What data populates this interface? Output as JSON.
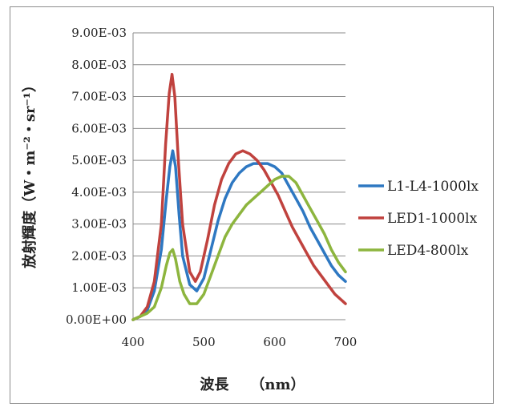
{
  "chart_data": {
    "type": "line",
    "title": "",
    "xlabel": "波長　　（nm）",
    "ylabel": "放射輝度（W・m⁻²・sr⁻¹）",
    "xlim": [
      400,
      700
    ],
    "ylim": [
      0,
      0.009
    ],
    "x_ticks": [
      "400",
      "500",
      "600",
      "700"
    ],
    "y_ticks": [
      "0.00E+00",
      "1.00E-03",
      "2.00E-03",
      "3.00E-03",
      "4.00E-03",
      "5.00E-03",
      "6.00E-03",
      "7.00E-03",
      "8.00E-03",
      "9.00E-03"
    ],
    "grid": "horizontal",
    "legend_position": "right",
    "series": [
      {
        "name": "L1-L4-1000lx",
        "color": "#2e78c2",
        "points": [
          [
            400,
            0
          ],
          [
            410,
            0.0001
          ],
          [
            420,
            0.0003
          ],
          [
            430,
            0.0009
          ],
          [
            440,
            0.0022
          ],
          [
            447,
            0.0038
          ],
          [
            452,
            0.0048
          ],
          [
            456,
            0.0053
          ],
          [
            460,
            0.0048
          ],
          [
            465,
            0.0033
          ],
          [
            470,
            0.002
          ],
          [
            480,
            0.0011
          ],
          [
            490,
            0.0009
          ],
          [
            500,
            0.0013
          ],
          [
            510,
            0.0022
          ],
          [
            520,
            0.0031
          ],
          [
            530,
            0.0038
          ],
          [
            540,
            0.0043
          ],
          [
            550,
            0.0046
          ],
          [
            560,
            0.0048
          ],
          [
            570,
            0.0049
          ],
          [
            580,
            0.0049
          ],
          [
            590,
            0.0049
          ],
          [
            600,
            0.0048
          ],
          [
            610,
            0.0046
          ],
          [
            620,
            0.0042
          ],
          [
            630,
            0.0038
          ],
          [
            640,
            0.0034
          ],
          [
            650,
            0.0029
          ],
          [
            660,
            0.0025
          ],
          [
            670,
            0.0021
          ],
          [
            680,
            0.0017
          ],
          [
            690,
            0.0014
          ],
          [
            700,
            0.0012
          ]
        ]
      },
      {
        "name": "LED1-1000lx",
        "color": "#c0423e",
        "points": [
          [
            400,
            0
          ],
          [
            410,
            0.0001
          ],
          [
            420,
            0.0004
          ],
          [
            430,
            0.0012
          ],
          [
            440,
            0.003
          ],
          [
            446,
            0.0055
          ],
          [
            451,
            0.0071
          ],
          [
            455,
            0.0077
          ],
          [
            459,
            0.007
          ],
          [
            464,
            0.005
          ],
          [
            470,
            0.003
          ],
          [
            480,
            0.0015
          ],
          [
            488,
            0.0012
          ],
          [
            495,
            0.0015
          ],
          [
            505,
            0.0025
          ],
          [
            515,
            0.0036
          ],
          [
            525,
            0.0044
          ],
          [
            535,
            0.0049
          ],
          [
            545,
            0.0052
          ],
          [
            555,
            0.0053
          ],
          [
            565,
            0.0052
          ],
          [
            575,
            0.005
          ],
          [
            585,
            0.0047
          ],
          [
            595,
            0.0043
          ],
          [
            605,
            0.0039
          ],
          [
            615,
            0.0034
          ],
          [
            625,
            0.0029
          ],
          [
            635,
            0.0025
          ],
          [
            645,
            0.0021
          ],
          [
            655,
            0.0017
          ],
          [
            665,
            0.0014
          ],
          [
            675,
            0.0011
          ],
          [
            685,
            0.0008
          ],
          [
            695,
            0.0006
          ],
          [
            700,
            0.0005
          ]
        ]
      },
      {
        "name": "LED4-800lx",
        "color": "#8db53e",
        "points": [
          [
            400,
            0
          ],
          [
            410,
            0.0001
          ],
          [
            420,
            0.0002
          ],
          [
            430,
            0.0004
          ],
          [
            440,
            0.001
          ],
          [
            447,
            0.0017
          ],
          [
            452,
            0.0021
          ],
          [
            456,
            0.0022
          ],
          [
            460,
            0.0019
          ],
          [
            466,
            0.0012
          ],
          [
            472,
            0.0008
          ],
          [
            480,
            0.0005
          ],
          [
            490,
            0.0005
          ],
          [
            500,
            0.0008
          ],
          [
            510,
            0.0014
          ],
          [
            520,
            0.002
          ],
          [
            530,
            0.0026
          ],
          [
            540,
            0.003
          ],
          [
            550,
            0.0033
          ],
          [
            560,
            0.0036
          ],
          [
            570,
            0.0038
          ],
          [
            580,
            0.004
          ],
          [
            590,
            0.0042
          ],
          [
            600,
            0.0044
          ],
          [
            610,
            0.0045
          ],
          [
            620,
            0.0045
          ],
          [
            630,
            0.0043
          ],
          [
            640,
            0.0039
          ],
          [
            650,
            0.0035
          ],
          [
            660,
            0.0031
          ],
          [
            670,
            0.0027
          ],
          [
            680,
            0.0022
          ],
          [
            690,
            0.0018
          ],
          [
            700,
            0.0015
          ]
        ]
      }
    ]
  }
}
